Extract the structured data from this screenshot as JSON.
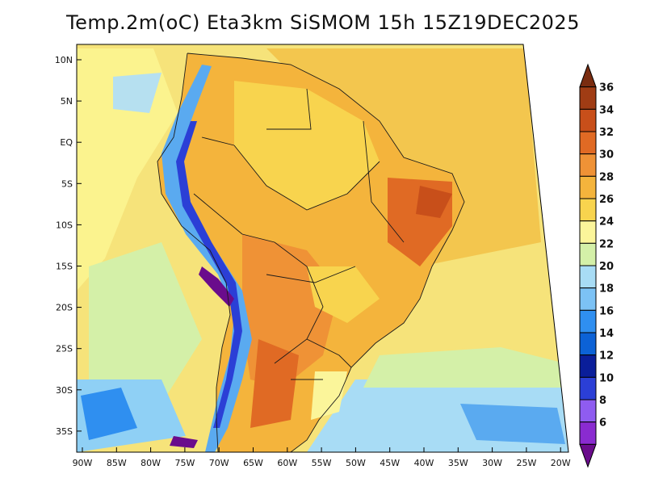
{
  "title": "Temp.2m(oC) Eta3km SiSMOM 15h 15Z19DEC2025",
  "map": {
    "variable": "2m temperature (oC)",
    "lat_labels": [
      "10N",
      "5N",
      "EQ",
      "5S",
      "10S",
      "15S",
      "20S",
      "25S",
      "30S",
      "35S"
    ],
    "lon_labels": [
      "90W",
      "85W",
      "80W",
      "75W",
      "70W",
      "65W",
      "60W",
      "55W",
      "50W",
      "45W",
      "40W",
      "35W",
      "30W",
      "25W",
      "20W"
    ]
  },
  "colorbar": {
    "labels": [
      "6",
      "8",
      "10",
      "12",
      "14",
      "16",
      "18",
      "20",
      "22",
      "24",
      "26",
      "28",
      "30",
      "32",
      "34",
      "36"
    ],
    "colors": [
      "#6a0c8c",
      "#8a2bd0",
      "#8f5cf0",
      "#2b3fd6",
      "#0a1e9a",
      "#0c62d6",
      "#2f8ff0",
      "#7cc2f5",
      "#a8dcf5",
      "#d4f0a8",
      "#fbf59a",
      "#f8d44e",
      "#f4b43c",
      "#ef9236",
      "#e06a24",
      "#c84f1a",
      "#a03c14",
      "#7a2c10"
    ]
  }
}
